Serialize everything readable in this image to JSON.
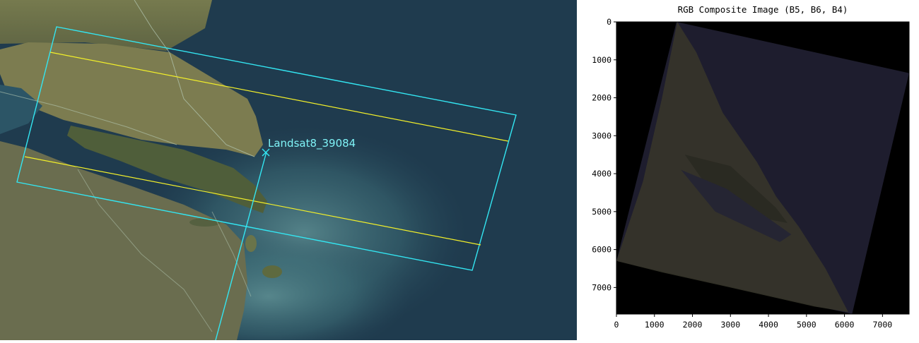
{
  "map": {
    "scene_label": "Landsat8_39084",
    "colors": {
      "footprint": "#33e6f2",
      "scanline": "#f2ef2a",
      "label": "#7ff3f7",
      "sea": "#1f3b4e",
      "land": "#6b6e46"
    },
    "icons": {
      "scene_center_marker": "x-marker-icon"
    }
  },
  "chart_data": {
    "type": "image",
    "title": "RGB Composite Image (B5, B6, B4)",
    "xlabel": "",
    "ylabel": "",
    "xlim": [
      0,
      7700
    ],
    "ylim": [
      7700,
      0
    ],
    "xticks": [
      0,
      1000,
      2000,
      3000,
      4000,
      5000,
      6000,
      7000
    ],
    "yticks": [
      0,
      1000,
      2000,
      3000,
      4000,
      5000,
      6000,
      7000
    ],
    "tick_labels_x": [
      "0",
      "1000",
      "2000",
      "3000",
      "4000",
      "5000",
      "6000",
      "7000"
    ],
    "tick_labels_y": [
      "0",
      "1000",
      "2000",
      "3000",
      "4000",
      "5000",
      "6000",
      "7000"
    ],
    "footprint_corners": [
      [
        1580,
        0
      ],
      [
        7700,
        1350
      ],
      [
        6200,
        7700
      ],
      [
        0,
        6300
      ]
    ],
    "background_color": "#000000"
  }
}
